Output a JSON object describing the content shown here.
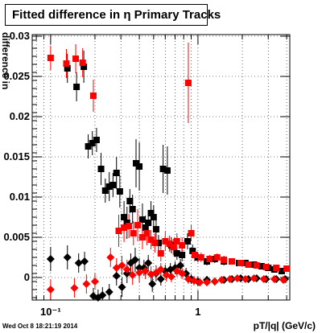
{
  "title": "Fitted difference in η  Primary Tracks",
  "xlabel": "pT/|q| (GeV/c)",
  "ylabel": "difference in",
  "timestamp": "Wed Oct  8 18:21:19 2014",
  "chart_data": {
    "type": "scatter",
    "title": "Fitted difference in η  Primary Tracks",
    "xlabel": "pT/|q| (GeV/c)",
    "ylabel": "difference in",
    "xscale": "log",
    "xlim": [
      0.075,
      4.2
    ],
    "ylim": [
      -0.0028,
      0.0302
    ],
    "grid": true,
    "xticks": [
      {
        "v": 0.1,
        "label": "10⁻¹"
      },
      {
        "v": 1,
        "label": "1"
      }
    ],
    "yticks": [
      {
        "v": 0,
        "label": "0"
      },
      {
        "v": 0.005,
        "label": "0.005"
      },
      {
        "v": 0.01,
        "label": "0.01"
      },
      {
        "v": 0.015,
        "label": "0.015"
      },
      {
        "v": 0.02,
        "label": "0.02"
      },
      {
        "v": 0.025,
        "label": "0.025"
      },
      {
        "v": 0.03,
        "label": "0.03"
      }
    ],
    "series": [
      {
        "color": "#000000",
        "marker": "square",
        "points": [
          [
            0.13,
            0.026,
            0.0018
          ],
          [
            0.15,
            0.0237,
            0.0018
          ],
          [
            0.168,
            0.0262,
            0.002
          ],
          [
            0.18,
            0.0163,
            0.0015
          ],
          [
            0.192,
            0.0167,
            0.0015
          ],
          [
            0.205,
            0.0171,
            0.0015
          ],
          [
            0.22,
            0.0135,
            0.002
          ],
          [
            0.235,
            0.0108,
            0.0015
          ],
          [
            0.25,
            0.0113,
            0.0018
          ],
          [
            0.265,
            0.0115,
            0.0015
          ],
          [
            0.28,
            0.013,
            0.002
          ],
          [
            0.295,
            0.0107,
            0.002
          ],
          [
            0.315,
            0.0075,
            0.002
          ],
          [
            0.33,
            0.0068,
            0.002
          ],
          [
            0.345,
            0.0095,
            0.0015
          ],
          [
            0.36,
            0.0085,
            0.0018
          ],
          [
            0.38,
            0.0142,
            0.003
          ],
          [
            0.4,
            0.0138,
            0.003
          ],
          [
            0.42,
            0.0072,
            0.002
          ],
          [
            0.44,
            0.0062,
            0.0015
          ],
          [
            0.46,
            0.0068,
            0.0015
          ],
          [
            0.48,
            0.008,
            0.0015
          ],
          [
            0.5,
            0.0075,
            0.0015
          ],
          [
            0.52,
            0.006,
            0.0015
          ],
          [
            0.54,
            0.0043,
            0.001
          ],
          [
            0.58,
            0.0135,
            0.003
          ],
          [
            0.62,
            0.0133,
            0.003
          ],
          [
            0.66,
            0.004,
            0.001
          ],
          [
            0.72,
            0.003,
            0.0008
          ],
          [
            0.78,
            0.0028,
            0.0008
          ],
          [
            0.85,
            0.0045,
            0.001
          ],
          [
            0.92,
            0.0033,
            0.0008
          ],
          [
            1.0,
            0.0025,
            0.0006
          ],
          [
            1.15,
            0.002,
            0.0005
          ],
          [
            1.3,
            0.0023,
            0.0005
          ],
          [
            1.5,
            0.002,
            0.0005
          ],
          [
            1.7,
            0.002,
            0.0004
          ],
          [
            1.9,
            0.0018,
            0.0004
          ],
          [
            2.1,
            0.0018,
            0.0004
          ],
          [
            2.4,
            0.0016,
            0.0004
          ],
          [
            2.7,
            0.0014,
            0.0004
          ],
          [
            3.0,
            0.0012,
            0.0004
          ],
          [
            3.3,
            0.001,
            0.0004
          ],
          [
            3.7,
            0.0008,
            0.0004
          ]
        ]
      },
      {
        "color": "#ff0000",
        "marker": "square",
        "points": [
          [
            0.1,
            0.0273,
            0.0015
          ],
          [
            0.128,
            0.0266,
            0.0018
          ],
          [
            0.148,
            0.0272,
            0.0018
          ],
          [
            0.165,
            0.0267,
            0.0018
          ],
          [
            0.195,
            0.0226,
            0.002
          ],
          [
            0.29,
            0.0058,
            0.002
          ],
          [
            0.315,
            0.0062,
            0.0018
          ],
          [
            0.34,
            0.0064,
            0.0015
          ],
          [
            0.365,
            0.0055,
            0.0015
          ],
          [
            0.39,
            0.0065,
            0.002
          ],
          [
            0.42,
            0.005,
            0.0015
          ],
          [
            0.45,
            0.0055,
            0.0015
          ],
          [
            0.48,
            0.0047,
            0.0012
          ],
          [
            0.51,
            0.0043,
            0.0012
          ],
          [
            0.56,
            0.003,
            0.001
          ],
          [
            0.6,
            0.0045,
            0.0012
          ],
          [
            0.64,
            0.0042,
            0.001
          ],
          [
            0.68,
            0.0038,
            0.001
          ],
          [
            0.72,
            0.0045,
            0.001
          ],
          [
            0.78,
            0.004,
            0.001
          ],
          [
            0.86,
            0.0242,
            0.005
          ],
          [
            0.9,
            0.0055,
            0.001
          ],
          [
            0.95,
            0.0028,
            0.0008
          ],
          [
            1.05,
            0.0025,
            0.0006
          ],
          [
            1.2,
            0.0023,
            0.0005
          ],
          [
            1.35,
            0.0025,
            0.0005
          ],
          [
            1.5,
            0.0022,
            0.0005
          ],
          [
            1.7,
            0.002,
            0.0004
          ],
          [
            1.95,
            0.0018,
            0.0004
          ],
          [
            2.2,
            0.0016,
            0.0004
          ],
          [
            2.5,
            0.0015,
            0.0004
          ],
          [
            2.9,
            0.0013,
            0.0004
          ],
          [
            3.4,
            0.0012,
            0.0004
          ],
          [
            4.0,
            0.0011,
            0.0004
          ]
        ]
      },
      {
        "color": "#000000",
        "marker": "diamond",
        "points": [
          [
            0.1,
            0.0023,
            0.0015
          ],
          [
            0.13,
            0.0025,
            0.0015
          ],
          [
            0.155,
            0.0018,
            0.0012
          ],
          [
            0.17,
            0.002,
            0.0012
          ],
          [
            0.195,
            -0.0023,
            0.001
          ],
          [
            0.21,
            -0.0025,
            0.001
          ],
          [
            0.225,
            -0.0022,
            0.001
          ],
          [
            0.25,
            -0.0018,
            0.001
          ],
          [
            0.28,
            0.0002,
            0.0012
          ],
          [
            0.305,
            -0.0012,
            0.0012
          ],
          [
            0.33,
            0.0005,
            0.0012
          ],
          [
            0.35,
            0.0018,
            0.0012
          ],
          [
            0.375,
            0.0022,
            0.0015
          ],
          [
            0.4,
            0.0012,
            0.0012
          ],
          [
            0.43,
            0.0012,
            0.001
          ],
          [
            0.46,
            0.0018,
            0.001
          ],
          [
            0.49,
            -0.0008,
            0.001
          ],
          [
            0.52,
            0.0005,
            0.001
          ],
          [
            0.56,
            -0.0002,
            0.0008
          ],
          [
            0.6,
            0.0008,
            0.0008
          ],
          [
            0.65,
            0.001,
            0.0008
          ],
          [
            0.7,
            0.0012,
            0.0008
          ],
          [
            0.76,
            0.0015,
            0.0008
          ],
          [
            0.83,
            0.0005,
            0.0007
          ],
          [
            0.9,
            -0.0002,
            0.0006
          ],
          [
            1.0,
            -0.0005,
            0.0006
          ],
          [
            1.15,
            -0.0003,
            0.0005
          ],
          [
            1.3,
            -0.0005,
            0.0005
          ],
          [
            1.5,
            -0.0003,
            0.0004
          ],
          [
            1.7,
            -0.0002,
            0.0004
          ],
          [
            1.95,
            -0.0001,
            0.0004
          ],
          [
            2.2,
            -0.0002,
            0.0004
          ],
          [
            2.5,
            -0.0001,
            0.0004
          ],
          [
            2.9,
            -0.0002,
            0.0004
          ],
          [
            3.4,
            -0.0002,
            0.0004
          ],
          [
            3.9,
            -0.0002,
            0.0004
          ]
        ]
      },
      {
        "color": "#ff0000",
        "marker": "diamond",
        "points": [
          [
            0.1,
            -0.0015,
            0.0012
          ],
          [
            0.145,
            -0.0013,
            0.0012
          ],
          [
            0.175,
            -0.0008,
            0.0012
          ],
          [
            0.2,
            -0.0005,
            0.001
          ],
          [
            0.255,
            0.0025,
            0.0012
          ],
          [
            0.28,
            0.0012,
            0.0012
          ],
          [
            0.305,
            0.0015,
            0.0012
          ],
          [
            0.33,
            0.001,
            0.0012
          ],
          [
            0.36,
            0.0003,
            0.0012
          ],
          [
            0.4,
            0.0006,
            0.0012
          ],
          [
            0.44,
            0.0008,
            0.001
          ],
          [
            0.48,
            0.0004,
            0.001
          ],
          [
            0.52,
            0.0006,
            0.0008
          ],
          [
            0.56,
            0.001,
            0.0008
          ],
          [
            0.61,
            0.0003,
            0.0008
          ],
          [
            0.66,
            0.0001,
            0.0007
          ],
          [
            0.72,
            0.0008,
            0.0007
          ],
          [
            0.78,
            0.0005,
            0.0007
          ],
          [
            0.86,
            -0.0002,
            0.0006
          ],
          [
            0.94,
            -0.0004,
            0.0006
          ],
          [
            1.03,
            -0.0006,
            0.0005
          ],
          [
            1.15,
            -0.0006,
            0.0005
          ],
          [
            1.3,
            -0.0005,
            0.0005
          ],
          [
            1.45,
            -0.0003,
            0.0004
          ],
          [
            1.65,
            -0.0002,
            0.0004
          ],
          [
            1.85,
            -0.0001,
            0.0004
          ],
          [
            2.1,
            -0.0002,
            0.0004
          ],
          [
            2.4,
            -0.0001,
            0.0004
          ],
          [
            2.8,
            -0.0002,
            0.0004
          ],
          [
            3.3,
            -0.0002,
            0.0004
          ],
          [
            3.8,
            -0.0003,
            0.0004
          ]
        ]
      }
    ]
  }
}
